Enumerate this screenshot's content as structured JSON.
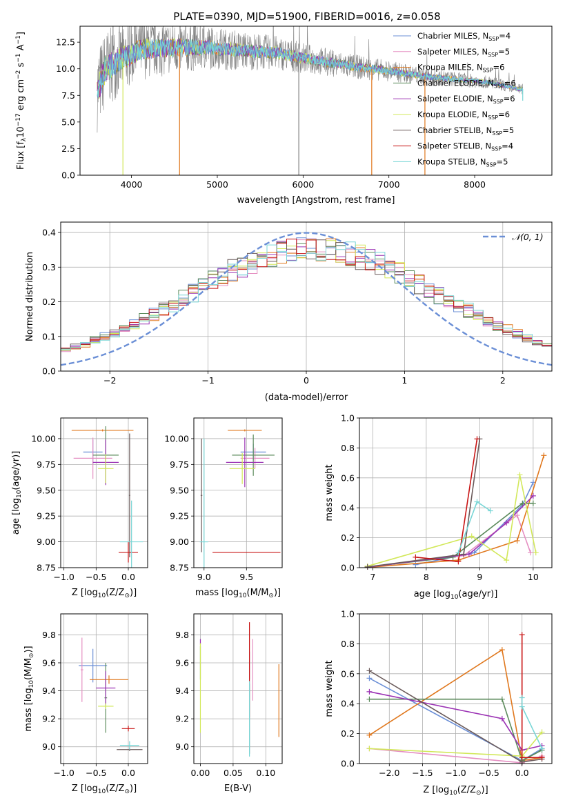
{
  "figure": {
    "title": "PLATE=0390, MJD=51900, FIBERID=0016, z=0.058"
  },
  "colors": {
    "chabrier_miles": "#6b8fd6",
    "salpeter_miles": "#e58fc2",
    "kroupa_miles": "#e0781e",
    "chabrier_elodie": "#5a8a5a",
    "salpeter_elodie": "#9b32b4",
    "kroupa_elodie": "#d2e85a",
    "chabrier_stelib": "#6a5a5a",
    "salpeter_stelib": "#c81414",
    "kroupa_stelib": "#78d6d6",
    "data": "#808080",
    "gauss": "#6b8fd6"
  },
  "chart_data": [
    {
      "id": "spectrum",
      "type": "line",
      "xlabel": "wavelength [Angstrom, rest frame]",
      "ylabel": "Flux [f",
      "ylabel_sub": "λ",
      "ylabel_rest": "10",
      "ylabel_exp1": "−17",
      "ylabel_mid": " erg cm",
      "ylabel_exp2": "−2",
      "ylabel_mid2": " s",
      "ylabel_exp3": "−1",
      "ylabel_end": " A",
      "ylabel_exp4": "−1",
      "ylabel_close": "]",
      "xlim": [
        3400,
        8900
      ],
      "ylim": [
        0,
        14
      ],
      "xticks": [
        "4000",
        "5000",
        "6000",
        "7000",
        "8000"
      ],
      "yticks": [
        "0.0",
        "2.5",
        "5.0",
        "7.5",
        "10.0",
        "12.5"
      ],
      "legend_position": "top-right",
      "legend": [
        {
          "main": "Chabrier MILES, N",
          "sub": "SSP",
          "end": "=4"
        },
        {
          "main": "Salpeter MILES, N",
          "sub": "SSP",
          "end": "=5"
        },
        {
          "main": "Kroupa MILES, N",
          "sub": "SSP",
          "end": "=6"
        },
        {
          "main": "Chabrier ELODIE, N",
          "sub": "SSP",
          "end": "=6"
        },
        {
          "main": "Salpeter ELODIE, N",
          "sub": "SSP",
          "end": "=6"
        },
        {
          "main": "Kroupa ELODIE, N",
          "sub": "SSP",
          "end": "=6"
        },
        {
          "main": "Chabrier STELIB, N",
          "sub": "SSP",
          "end": "=5"
        },
        {
          "main": "Salpeter STELIB, N",
          "sub": "SSP",
          "end": "=4"
        },
        {
          "main": "Kroupa STELIB, N",
          "sub": "SSP",
          "end": "=5"
        }
      ],
      "continuum": [
        [
          3600,
          8.0
        ],
        [
          3700,
          10.0
        ],
        [
          3900,
          11.0
        ],
        [
          4100,
          11.8
        ],
        [
          4500,
          12.0
        ],
        [
          4900,
          12.0
        ],
        [
          5300,
          11.7
        ],
        [
          5700,
          11.5
        ],
        [
          6000,
          11.0
        ],
        [
          6300,
          10.6
        ],
        [
          6600,
          10.2
        ],
        [
          7000,
          9.8
        ],
        [
          7400,
          9.3
        ],
        [
          7800,
          9.0
        ],
        [
          8200,
          8.7
        ],
        [
          8500,
          8.1
        ]
      ],
      "noise_amplitude": [
        [
          3600,
          4.0
        ],
        [
          4000,
          3.0
        ],
        [
          5000,
          2.0
        ],
        [
          6500,
          1.2
        ],
        [
          7500,
          0.8
        ],
        [
          8500,
          0.5
        ]
      ],
      "spikes": [
        [
          3900,
          0.0
        ],
        [
          4560,
          0.0
        ],
        [
          5950,
          0.0
        ],
        [
          6800,
          0.0
        ],
        [
          7420,
          0.0
        ],
        [
          8560,
          7.0
        ]
      ]
    },
    {
      "id": "residuals",
      "type": "bar",
      "xlabel": "(data-model)/error",
      "ylabel": "Normed distribution",
      "xlim": [
        -2.5,
        2.5
      ],
      "ylim": [
        0,
        0.43
      ],
      "xticks": [
        "−2",
        "−1",
        "0",
        "1",
        "2"
      ],
      "yticks": [
        "0.0",
        "0.1",
        "0.2",
        "0.3",
        "0.4"
      ],
      "legend_position": "top-right",
      "legend": [
        "𝒩(0, 1)"
      ],
      "bin_width": 0.1,
      "center": 0.05,
      "sigma": 1.3,
      "peak": 0.34
    },
    {
      "id": "age_vs_Z",
      "type": "scatter",
      "xlabel": "Z [log",
      "xlabel_sub": "10",
      "xlabel_rest": "(Z/Z",
      "xlabel_sub2": "⊙",
      "xlabel_close": ")]",
      "ylabel": "age  [log",
      "ylabel_sub": "10",
      "ylabel_rest": "(age/yr)]",
      "xlim": [
        -1.05,
        0.3
      ],
      "ylim": [
        8.75,
        10.2
      ],
      "xticks": [
        "−1.0",
        "−0.5",
        "0.0"
      ],
      "yticks": [
        "8.75",
        "9.00",
        "9.25",
        "9.50",
        "9.75",
        "10.00"
      ],
      "points": [
        {
          "s": "chabrier_miles",
          "x": -0.55,
          "y": 9.87,
          "xe": 0.15,
          "ye": 0.12
        },
        {
          "s": "salpeter_miles",
          "x": -0.55,
          "y": 9.81,
          "xe": 0.3,
          "ye": 0.2
        },
        {
          "s": "kroupa_miles",
          "x": -0.4,
          "y": 10.08,
          "xe": 0.48,
          "ye": 0.01
        },
        {
          "s": "chabrier_elodie",
          "x": -0.35,
          "y": 9.84,
          "xe": 0.2,
          "ye": 0.28
        },
        {
          "s": "salpeter_elodie",
          "x": -0.35,
          "y": 9.77,
          "xe": 0.2,
          "ye": 0.22
        },
        {
          "s": "kroupa_elodie",
          "x": -0.35,
          "y": 9.71,
          "xe": 0.12,
          "ye": 0.14
        },
        {
          "s": "chabrier_stelib",
          "x": 0.02,
          "y": 9.45,
          "xe": 0.01,
          "ye": 0.6
        },
        {
          "s": "salpeter_stelib",
          "x": 0.0,
          "y": 8.9,
          "xe": 0.15,
          "ye": 0.1
        },
        {
          "s": "kroupa_stelib",
          "x": 0.05,
          "y": 9.0,
          "xe": 0.18,
          "ye": 0.4
        }
      ]
    },
    {
      "id": "age_vs_mass",
      "type": "scatter",
      "xlabel": "mass [log",
      "xlabel_sub": "10",
      "xlabel_rest": "(M/M",
      "xlabel_sub2": "⊙",
      "xlabel_close": ")]",
      "xlim": [
        8.88,
        9.92
      ],
      "ylim": [
        8.75,
        10.2
      ],
      "xticks": [
        "9.0",
        "9.5"
      ],
      "yticks": [
        "8.75",
        "9.00",
        "9.25",
        "9.50",
        "9.75",
        "10.00"
      ],
      "points": [
        {
          "s": "chabrier_miles",
          "x": 9.58,
          "y": 9.87,
          "xe": 0.15,
          "ye": 0.08
        },
        {
          "s": "salpeter_miles",
          "x": 9.6,
          "y": 9.81,
          "xe": 0.17,
          "ye": 0.1
        },
        {
          "s": "kroupa_miles",
          "x": 9.48,
          "y": 10.08,
          "xe": 0.2,
          "ye": 0.01
        },
        {
          "s": "chabrier_elodie",
          "x": 9.58,
          "y": 9.84,
          "xe": 0.25,
          "ye": 0.2
        },
        {
          "s": "salpeter_elodie",
          "x": 9.48,
          "y": 9.77,
          "xe": 0.22,
          "ye": 0.24
        },
        {
          "s": "kroupa_elodie",
          "x": 9.45,
          "y": 9.71,
          "xe": 0.15,
          "ye": 0.15
        },
        {
          "s": "chabrier_stelib",
          "x": 8.97,
          "y": 9.45,
          "xe": 0.01,
          "ye": 0.55
        },
        {
          "s": "salpeter_stelib",
          "x": 9.5,
          "y": 8.9,
          "xe": 0.4,
          "ye": 0.0
        },
        {
          "s": "kroupa_stelib",
          "x": 9.0,
          "y": 9.0,
          "xe": 0.05,
          "ye": 1.0
        }
      ]
    },
    {
      "id": "weight_vs_age",
      "type": "line",
      "xlabel": "age  [log",
      "xlabel_sub": "10",
      "xlabel_rest": "(age/yr)]",
      "ylabel": "mass weight",
      "xlim": [
        6.75,
        10.35
      ],
      "ylim": [
        0,
        1.0
      ],
      "xticks": [
        "7",
        "8",
        "9",
        "10"
      ],
      "yticks": [
        "0.0",
        "0.2",
        "0.4",
        "0.6",
        "0.8",
        "1.0"
      ],
      "series": [
        {
          "s": "chabrier_miles",
          "x": [
            7.8,
            8.9,
            9.8,
            10.0
          ],
          "y": [
            0.02,
            0.1,
            0.42,
            0.57
          ]
        },
        {
          "s": "salpeter_miles",
          "x": [
            6.9,
            8.7,
            9.7,
            9.95
          ],
          "y": [
            0.005,
            0.08,
            0.35,
            0.1
          ]
        },
        {
          "s": "kroupa_miles",
          "x": [
            6.9,
            8.6,
            9.7,
            10.2
          ],
          "y": [
            0.002,
            0.05,
            0.18,
            0.75
          ]
        },
        {
          "s": "chabrier_elodie",
          "x": [
            6.9,
            8.5,
            9.8,
            10.0
          ],
          "y": [
            0.005,
            0.07,
            0.43,
            0.43
          ]
        },
        {
          "s": "salpeter_elodie",
          "x": [
            6.9,
            8.8,
            9.5,
            10.0
          ],
          "y": [
            0.003,
            0.09,
            0.3,
            0.48
          ]
        },
        {
          "s": "kroupa_elodie",
          "x": [
            6.9,
            8.85,
            9.5,
            9.75,
            10.05
          ],
          "y": [
            0.01,
            0.21,
            0.05,
            0.62,
            0.1
          ]
        },
        {
          "s": "chabrier_stelib",
          "x": [
            6.9,
            8.7,
            9.0
          ],
          "y": [
            0.005,
            0.09,
            0.86
          ]
        },
        {
          "s": "salpeter_stelib",
          "x": [
            7.8,
            8.6,
            8.95
          ],
          "y": [
            0.07,
            0.04,
            0.86
          ]
        },
        {
          "s": "kroupa_stelib",
          "x": [
            8.6,
            8.95,
            9.2
          ],
          "y": [
            0.1,
            0.44,
            0.38
          ]
        }
      ]
    },
    {
      "id": "mass_vs_Z",
      "type": "scatter",
      "xlabel": "Z [log",
      "xlabel_sub": "10",
      "xlabel_rest": "(Z/Z",
      "xlabel_sub2": "⊙",
      "xlabel_close": ")]",
      "ylabel": "mass [log",
      "ylabel_sub": "10",
      "ylabel_rest": "(M/M",
      "ylabel_sub2": "⊙",
      "ylabel_close": ")]",
      "xlim": [
        -1.05,
        0.3
      ],
      "ylim": [
        8.88,
        9.95
      ],
      "xticks": [
        "−1.0",
        "−0.5",
        "0.0"
      ],
      "yticks": [
        "9.0",
        "9.2",
        "9.4",
        "9.6",
        "9.8"
      ],
      "points": [
        {
          "s": "chabrier_miles",
          "x": -0.55,
          "y": 9.58,
          "xe": 0.22,
          "ye": 0.12
        },
        {
          "s": "salpeter_miles",
          "x": -0.72,
          "y": 9.55,
          "xe": 0.02,
          "ye": 0.23
        },
        {
          "s": "kroupa_miles",
          "x": -0.3,
          "y": 9.48,
          "xe": 0.3,
          "ye": 0.03
        },
        {
          "s": "chabrier_elodie",
          "x": -0.35,
          "y": 9.35,
          "xe": 0.02,
          "ye": 0.25
        },
        {
          "s": "salpeter_elodie",
          "x": -0.35,
          "y": 9.42,
          "xe": 0.15,
          "ye": 0.12
        },
        {
          "s": "kroupa_elodie",
          "x": -0.35,
          "y": 9.29,
          "xe": 0.12,
          "ye": 0.02
        },
        {
          "s": "chabrier_stelib",
          "x": 0.02,
          "y": 8.98,
          "xe": 0.2,
          "ye": 0.01
        },
        {
          "s": "salpeter_stelib",
          "x": 0.0,
          "y": 9.13,
          "xe": 0.1,
          "ye": 0.02
        },
        {
          "s": "kroupa_stelib",
          "x": 0.02,
          "y": 9.01,
          "xe": 0.15,
          "ye": 0.03
        }
      ]
    },
    {
      "id": "mass_vs_ebv",
      "type": "scatter",
      "xlabel": "E(B-V)",
      "xlim": [
        -0.01,
        0.125
      ],
      "ylim": [
        8.88,
        9.95
      ],
      "xticks": [
        "0.00",
        "0.05",
        "0.10"
      ],
      "yticks": [
        "9.0",
        "9.2",
        "9.4",
        "9.6",
        "9.8"
      ],
      "points": [
        {
          "s": "chabrier_miles",
          "x": 0.075,
          "y": 9.58,
          "xe": 0,
          "ye": 0.1
        },
        {
          "s": "salpeter_miles",
          "x": 0.08,
          "y": 9.55,
          "xe": 0,
          "ye": 0.22
        },
        {
          "s": "kroupa_miles",
          "x": 0.12,
          "y": 9.33,
          "xe": 0,
          "ye": 0.26
        },
        {
          "s": "chabrier_elodie",
          "x": 0.0,
          "y": 9.6,
          "xe": 0,
          "ye": 0.12
        },
        {
          "s": "salpeter_elodie",
          "x": 0.0,
          "y": 9.75,
          "xe": 0,
          "ye": 0.02
        },
        {
          "s": "kroupa_elodie",
          "x": 0.0,
          "y": 9.42,
          "xe": 0,
          "ye": 0.32
        },
        {
          "s": "chabrier_stelib",
          "x": 0.075,
          "y": 9.2,
          "xe": 0,
          "ye": 0.25
        },
        {
          "s": "salpeter_stelib",
          "x": 0.075,
          "y": 9.55,
          "xe": 0,
          "ye": 0.34
        },
        {
          "s": "kroupa_stelib",
          "x": 0.075,
          "y": 9.2,
          "xe": 0,
          "ye": 0.27
        }
      ]
    },
    {
      "id": "weight_vs_Z",
      "type": "line",
      "xlabel": "Z [log",
      "xlabel_sub": "10",
      "xlabel_rest": "(Z/Z",
      "xlabel_sub2": "⊙",
      "xlabel_close": ")]",
      "ylabel": "mass weight",
      "xlim": [
        -2.45,
        0.45
      ],
      "ylim": [
        0,
        1.0
      ],
      "xticks": [
        "−2.0",
        "−1.5",
        "−1.0",
        "−0.5",
        "0.0"
      ],
      "yticks": [
        "0.0",
        "0.2",
        "0.4",
        "0.6",
        "0.8",
        "1.0"
      ],
      "series": [
        {
          "s": "chabrier_miles",
          "x": [
            -2.3,
            0.0,
            0.3
          ],
          "y": [
            0.57,
            0.02,
            0.1
          ]
        },
        {
          "s": "salpeter_miles",
          "x": [
            -2.3,
            0.0,
            0.3
          ],
          "y": [
            0.1,
            0.005,
            0.05
          ]
        },
        {
          "s": "kroupa_miles",
          "x": [
            -2.3,
            -0.3,
            0.0,
            0.3
          ],
          "y": [
            0.19,
            0.76,
            0.02,
            0.04
          ]
        },
        {
          "s": "chabrier_elodie",
          "x": [
            -2.3,
            -0.3,
            0.0,
            0.3
          ],
          "y": [
            0.43,
            0.43,
            0.02,
            0.09
          ]
        },
        {
          "s": "salpeter_elodie",
          "x": [
            -2.3,
            -0.3,
            0.0,
            0.3
          ],
          "y": [
            0.48,
            0.3,
            0.09,
            0.12
          ]
        },
        {
          "s": "kroupa_elodie",
          "x": [
            -2.3,
            0.0,
            0.3
          ],
          "y": [
            0.1,
            0.05,
            0.21
          ]
        },
        {
          "s": "chabrier_stelib",
          "x": [
            -2.3,
            0.0,
            0.3
          ],
          "y": [
            0.62,
            0.01,
            0.03
          ]
        },
        {
          "s": "salpeter_stelib",
          "x": [
            0.0,
            0.0,
            0.3
          ],
          "y": [
            0.86,
            0.04,
            0.04
          ]
        },
        {
          "s": "kroupa_stelib",
          "x": [
            0.0,
            0.0,
            0.3
          ],
          "y": [
            0.44,
            0.38,
            0.1
          ]
        }
      ]
    }
  ]
}
